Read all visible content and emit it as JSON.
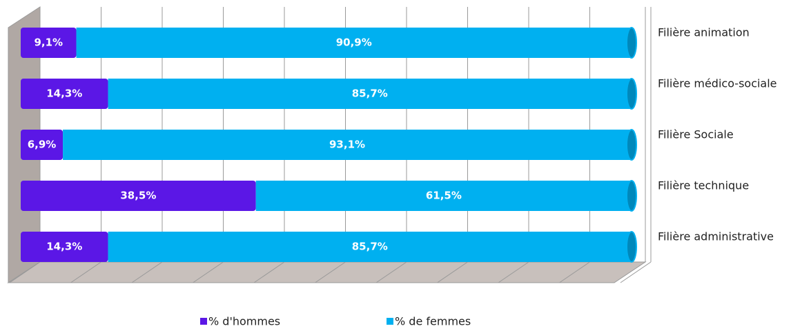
{
  "chart_data": {
    "type": "stacked_bar_horizontal",
    "categories": [
      "Filière animation",
      "Filière médico-sociale",
      "Filière Sociale",
      "Filière technique",
      "Filière administrative"
    ],
    "series": [
      {
        "name": "% d'hommes",
        "color": "#5b17e6",
        "values": [
          9.1,
          14.3,
          6.9,
          38.5,
          14.3
        ],
        "value_labels": [
          "9,1%",
          "14,3%",
          "6,9%",
          "38,5%",
          "14,3%"
        ]
      },
      {
        "name": "% de femmes",
        "color": "#00b0f0",
        "values": [
          90.9,
          85.7,
          93.1,
          61.5,
          85.7
        ],
        "value_labels": [
          "90,9%",
          "85,7%",
          "93,1%",
          "61,5%",
          "85,7%"
        ]
      }
    ],
    "xlim": [
      0,
      100
    ],
    "xticks": [
      0,
      10,
      20,
      30,
      40,
      50,
      60,
      70,
      80,
      90,
      100
    ],
    "grid": true
  }
}
